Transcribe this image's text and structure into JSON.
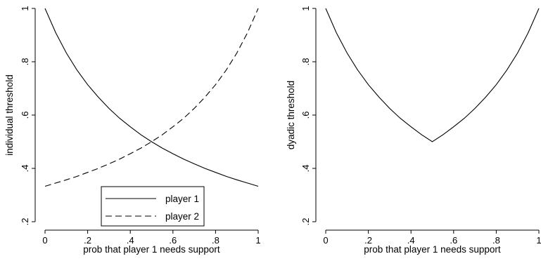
{
  "chart_data": [
    {
      "type": "line",
      "xlabel": "prob that player 1 needs support",
      "ylabel": "individual threshold",
      "xlim": [
        0,
        1
      ],
      "ylim": [
        0.2,
        1
      ],
      "xticks": [
        0,
        0.2,
        0.4,
        0.6,
        0.8,
        1
      ],
      "xtick_labels": [
        "0",
        ".2",
        ".4",
        ".6",
        ".8",
        "1"
      ],
      "yticks": [
        0.2,
        0.4,
        0.6,
        0.8,
        1
      ],
      "ytick_labels": [
        ".2",
        ".4",
        ".6",
        ".8",
        "1"
      ],
      "grid": false,
      "legend": "bottom-center",
      "x": [
        0,
        0.05,
        0.1,
        0.15,
        0.2,
        0.25,
        0.3,
        0.35,
        0.4,
        0.45,
        0.5,
        0.55,
        0.6,
        0.65,
        0.7,
        0.75,
        0.8,
        0.85,
        0.9,
        0.95,
        1
      ],
      "series": [
        {
          "name": "player 1",
          "style": "solid",
          "values": [
            1.0,
            0.909,
            0.833,
            0.769,
            0.714,
            0.667,
            0.625,
            0.588,
            0.556,
            0.526,
            0.5,
            0.476,
            0.455,
            0.435,
            0.417,
            0.4,
            0.385,
            0.37,
            0.357,
            0.345,
            0.333
          ]
        },
        {
          "name": "player 2",
          "style": "dashed",
          "values": [
            0.333,
            0.345,
            0.357,
            0.37,
            0.385,
            0.4,
            0.417,
            0.435,
            0.455,
            0.476,
            0.5,
            0.526,
            0.556,
            0.588,
            0.625,
            0.667,
            0.714,
            0.769,
            0.833,
            0.909,
            1.0
          ]
        }
      ]
    },
    {
      "type": "line",
      "xlabel": "prob that player 1 needs support",
      "ylabel": "dyadic threshold",
      "xlim": [
        0,
        1
      ],
      "ylim": [
        0.2,
        1
      ],
      "xticks": [
        0,
        0.2,
        0.4,
        0.6,
        0.8,
        1
      ],
      "xtick_labels": [
        "0",
        ".2",
        ".4",
        ".6",
        ".8",
        "1"
      ],
      "yticks": [
        0.2,
        0.4,
        0.6,
        0.8,
        1
      ],
      "ytick_labels": [
        ".2",
        ".4",
        ".6",
        ".8",
        "1"
      ],
      "grid": false,
      "legend": "none",
      "x": [
        0,
        0.05,
        0.1,
        0.15,
        0.2,
        0.25,
        0.3,
        0.35,
        0.4,
        0.45,
        0.5,
        0.55,
        0.6,
        0.65,
        0.7,
        0.75,
        0.8,
        0.85,
        0.9,
        0.95,
        1
      ],
      "series": [
        {
          "style": "solid",
          "values": [
            1.0,
            0.909,
            0.833,
            0.769,
            0.714,
            0.667,
            0.625,
            0.588,
            0.556,
            0.526,
            0.5,
            0.526,
            0.556,
            0.588,
            0.625,
            0.667,
            0.714,
            0.769,
            0.833,
            0.909,
            1.0
          ]
        }
      ]
    }
  ]
}
